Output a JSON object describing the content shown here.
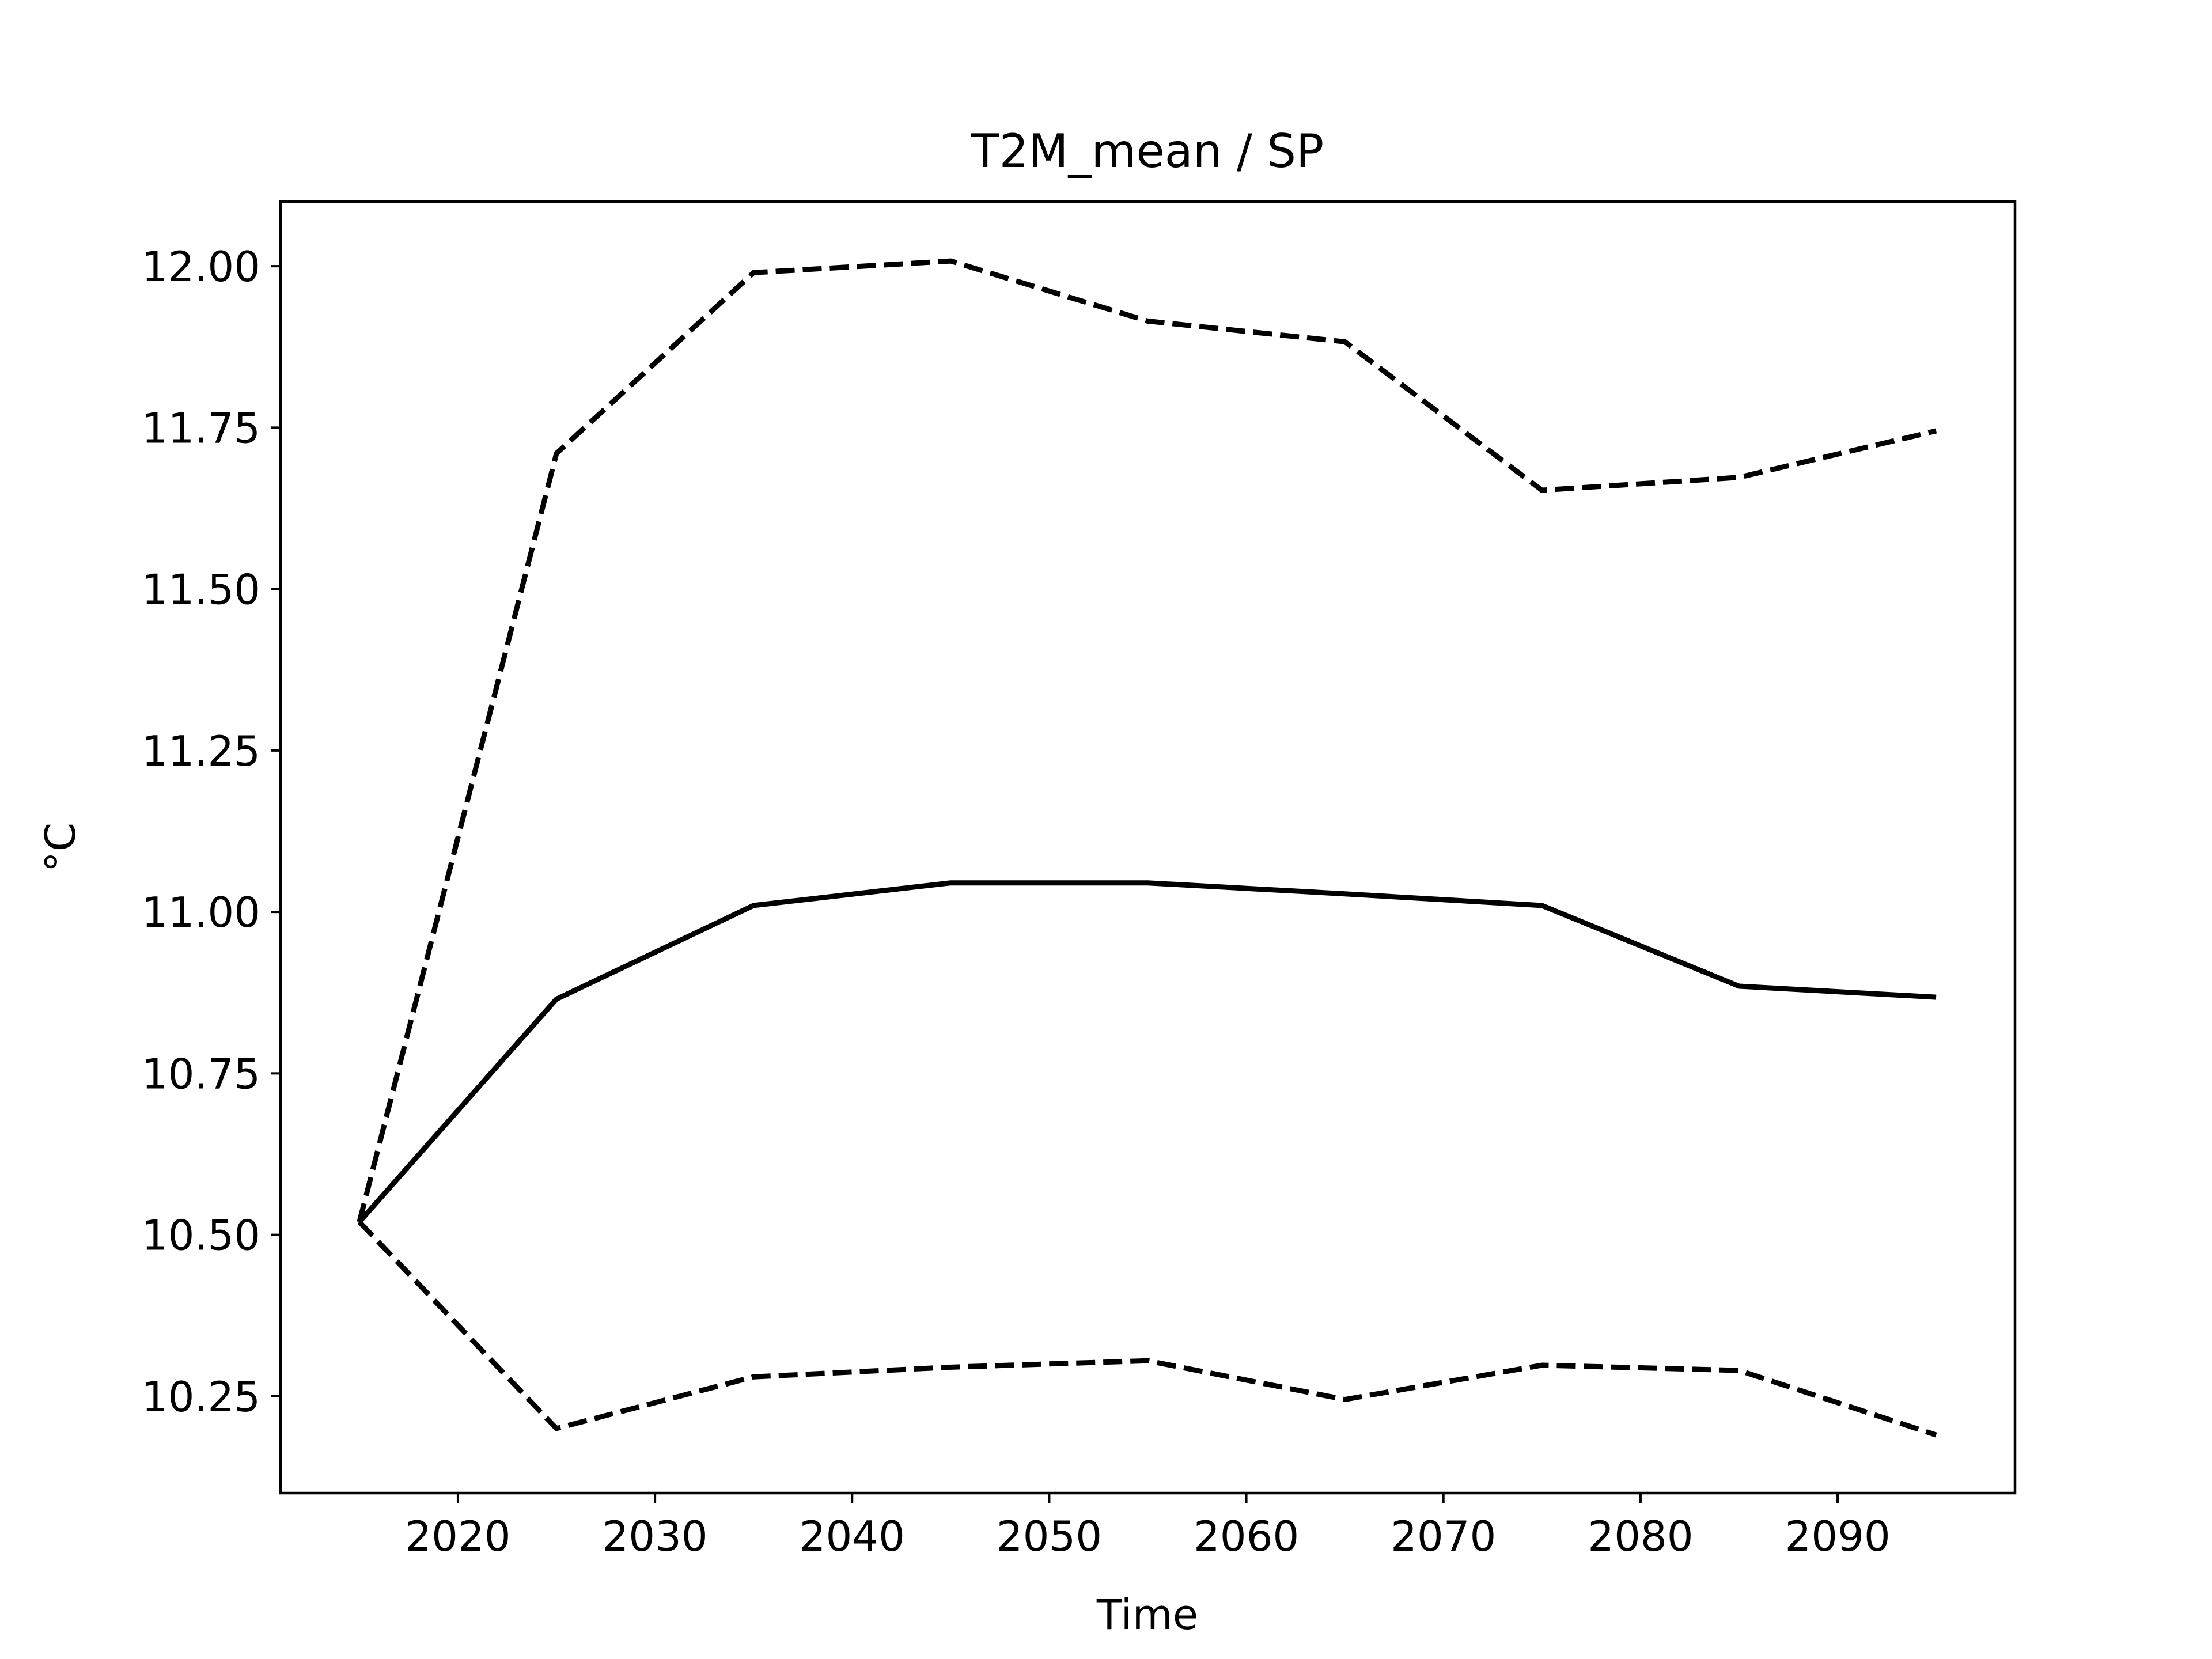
{
  "chart_data": {
    "type": "line",
    "title": "T2M_mean / SP",
    "xlabel": "Time",
    "ylabel": "°C",
    "xlim": [
      2011,
      2099
    ],
    "ylim": [
      10.1,
      12.1
    ],
    "xticks": [
      2020,
      2030,
      2040,
      2050,
      2060,
      2070,
      2080,
      2090
    ],
    "xtick_labels": [
      "2020",
      "2030",
      "2040",
      "2050",
      "2060",
      "2070",
      "2080",
      "2090"
    ],
    "yticks": [
      10.25,
      10.5,
      10.75,
      11.0,
      11.25,
      11.5,
      11.75,
      12.0
    ],
    "ytick_labels": [
      "10.25",
      "10.50",
      "10.75",
      "11.00",
      "11.25",
      "11.50",
      "11.75",
      "12.00"
    ],
    "grid": false,
    "x": [
      2015,
      2025,
      2035,
      2045,
      2055,
      2065,
      2075,
      2085,
      2095
    ],
    "series": [
      {
        "style": "solid",
        "color": "#000000",
        "values": [
          10.52,
          10.865,
          11.01,
          11.045,
          11.045,
          11.028,
          11.01,
          10.885,
          10.868
        ]
      },
      {
        "style": "dashed",
        "color": "#000000",
        "values": [
          10.52,
          11.71,
          11.99,
          12.008,
          11.915,
          11.883,
          11.653,
          11.673,
          11.745
        ]
      },
      {
        "style": "dashed",
        "color": "#000000",
        "values": [
          10.52,
          10.2,
          10.28,
          10.295,
          10.305,
          10.245,
          10.298,
          10.29,
          10.19
        ]
      }
    ]
  }
}
